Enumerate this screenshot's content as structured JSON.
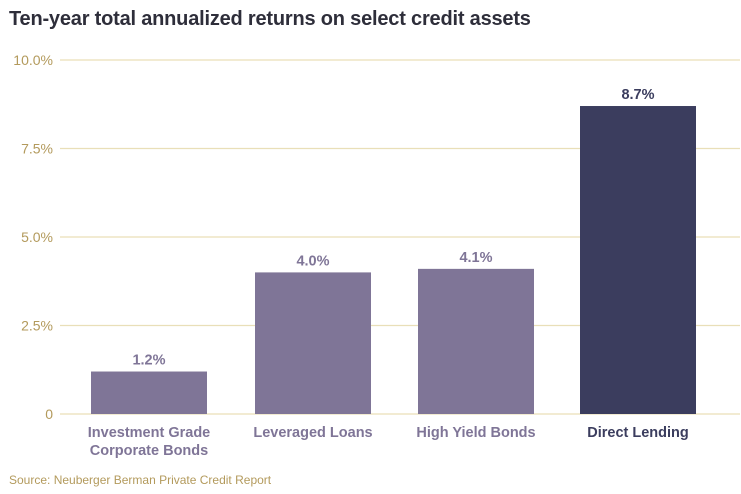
{
  "chart_data": {
    "type": "bar",
    "title": "Ten-year total annualized returns on select credit assets",
    "categories": [
      "Investment Grade\nCorporate Bonds",
      "Leveraged Loans",
      "High Yield Bonds",
      "Direct Lending"
    ],
    "values": [
      1.2,
      4.0,
      4.1,
      8.7
    ],
    "value_labels": [
      "1.2%",
      "4.0%",
      "4.1%",
      "8.7%"
    ],
    "ylim": [
      0,
      10
    ],
    "yticks": [
      0,
      2.5,
      5,
      7.5,
      10
    ],
    "ytick_labels": [
      "0",
      "2.5%",
      "5.0%",
      "7.5%",
      "10.0%"
    ],
    "grid": true,
    "source": "Source: Neuberger Berman Private Credit Report",
    "colors": {
      "bar": "#7f7597",
      "highlight_bar": "#3b3d5e",
      "highlight_index": 3,
      "grid": "#e9dfb8",
      "tick_text": "#b39a5c",
      "category_text": "#7f7597",
      "highlight_text": "#3b3d5e",
      "value_text": "#7f7597"
    }
  }
}
